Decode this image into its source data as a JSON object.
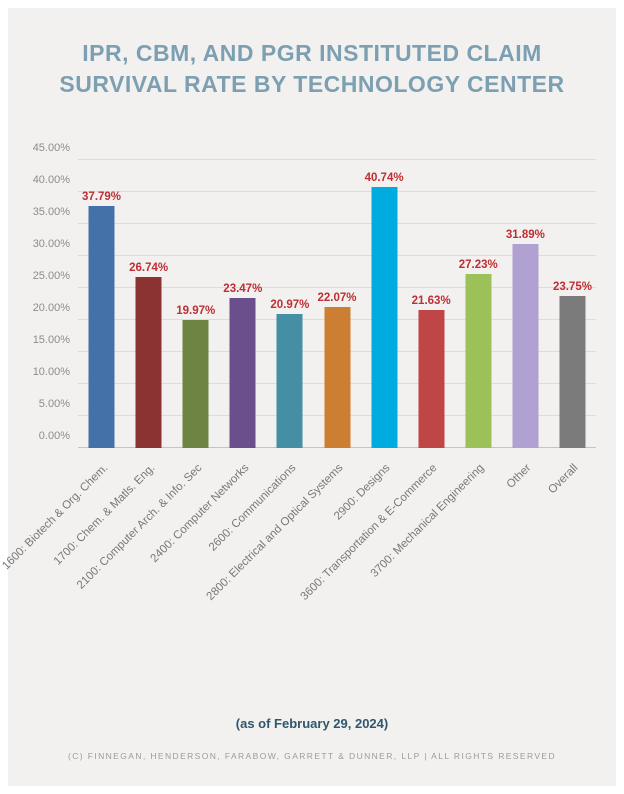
{
  "header": {
    "title_line1": "IPR, CBM, AND PGR INSTITUTED CLAIM",
    "title_line2": "SURVIVAL RATE BY TECHNOLOGY CENTER"
  },
  "chart_data": {
    "type": "bar",
    "title": "IPR, CBM, and PGR Instituted Claim Survival Rate by Technology Center",
    "categories": [
      "1600: Biotech & Org. Chem.",
      "1700: Chem. & Matls. Eng.",
      "2100: Computer Arch. & Info. Sec",
      "2400: Computer Networks",
      "2600: Communications",
      "2800: Electrical and Optical Systems",
      "2900: Designs",
      "3600: Transportation & E-Commerce",
      "3700: Mechanical Engineering",
      "Other",
      "Overall"
    ],
    "values": [
      37.79,
      26.74,
      19.97,
      23.47,
      20.97,
      22.07,
      40.74,
      21.63,
      27.23,
      31.89,
      23.75
    ],
    "value_labels": [
      "37.79%",
      "26.74%",
      "19.97%",
      "23.47%",
      "20.97%",
      "22.07%",
      "40.74%",
      "21.63%",
      "27.23%",
      "31.89%",
      "23.75%"
    ],
    "bar_colors": [
      "#4472a8",
      "#8b3333",
      "#6e8442",
      "#6a4f8c",
      "#448fa4",
      "#cc7f33",
      "#00acdf",
      "#bf4547",
      "#9bc158",
      "#b1a0d2",
      "#7b7b7b"
    ],
    "value_label_color": "#be2e33",
    "xlabel": "",
    "ylabel": "",
    "ylim": [
      0,
      45
    ],
    "ytick_step": 5,
    "ytick_labels": [
      "0.00%",
      "5.00%",
      "10.00%",
      "15.00%",
      "20.00%",
      "25.00%",
      "30.00%",
      "35.00%",
      "40.00%",
      "45.00%"
    ],
    "grid": true,
    "legend": "none"
  },
  "footer": {
    "as_of": "(as of February 29, 2024)",
    "copyright": "(C) FINNEGAN, HENDERSON, FARABOW, GARRETT & DUNNER, LLP | ALL RIGHTS RESERVED"
  }
}
